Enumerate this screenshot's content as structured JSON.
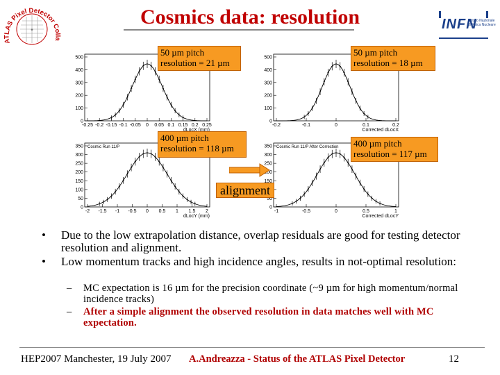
{
  "title": "Cosmics data: resolution",
  "logos": {
    "left_text": "ATLAS Pixel Detector Collaboration",
    "right_text": "INFN",
    "right_sub1": "Istituto Nazionale",
    "right_sub2": "di Fisica Nucleare"
  },
  "plots": [
    {
      "label_line1": "50 µm pitch",
      "label_line2": "resolution = 21 µm",
      "xlabel": "dLocX (mm)",
      "yticks": [
        "500",
        "400",
        "300",
        "200",
        "100",
        "0"
      ],
      "xticks": [
        "-0.25",
        "-0.2",
        "-0.15",
        "-0.1",
        "-0.05",
        "0",
        "0.05",
        "0.1",
        "0.15",
        "0.2",
        "0.25"
      ]
    },
    {
      "label_line1": "50 µm pitch",
      "label_line2": "resolution = 18 µm",
      "xlabel": "Corrected dLocX",
      "yticks": [
        "500",
        "400",
        "300",
        "200",
        "100",
        "0"
      ],
      "xticks": [
        "-0.2",
        "-0.1",
        "0",
        "0.1",
        "0.2"
      ]
    },
    {
      "label_line1": "400 µm pitch",
      "label_line2": "resolution = 118 µm",
      "xlabel": "dLocY (mm)",
      "plot_title": "Cosmic Run 11/P",
      "yticks": [
        "350",
        "300",
        "250",
        "200",
        "150",
        "100",
        "50",
        "0"
      ],
      "xticks": [
        "-2",
        "-1.5",
        "-1",
        "-0.5",
        "0",
        "0.5",
        "1",
        "1.5",
        "2"
      ]
    },
    {
      "label_line1": "400 µm pitch",
      "label_line2": "resolution = 117 µm",
      "xlabel": "Corrected dLocY",
      "plot_title": "Cosmic Run 11/P After Correction",
      "yticks": [
        "350",
        "300",
        "250",
        "200",
        "150",
        "100",
        "50",
        "0"
      ],
      "xticks": [
        "-1",
        "-0.5",
        "0",
        "0.5",
        "1"
      ]
    }
  ],
  "arrow_label": "alignment",
  "bullets": [
    {
      "marker": "•",
      "text": "Due to the low extrapolation distance, overlap residuals are good for testing detector resolution and alignment."
    },
    {
      "marker": "•",
      "text": "Low momentum tracks and high incidence angles, results in not-optimal resolution:"
    }
  ],
  "sub_bullets": [
    {
      "marker": "–",
      "text": "MC expectation is 16 µm for the precision coordinate (~9 µm for high momentum/normal incidence tracks)"
    },
    {
      "marker": "–",
      "text": "After a simple alignment the observed resolution in data matches well with MC expectation."
    }
  ],
  "footer": {
    "left": "HEP2007 Manchester, 19 July 2007",
    "center": "A.Andreazza - Status of the ATLAS Pixel Detector",
    "page": "12"
  },
  "colors": {
    "title": "#c00000",
    "label_box": "#f79a22",
    "arrow": "#f79a22",
    "footer_center": "#b00000"
  }
}
